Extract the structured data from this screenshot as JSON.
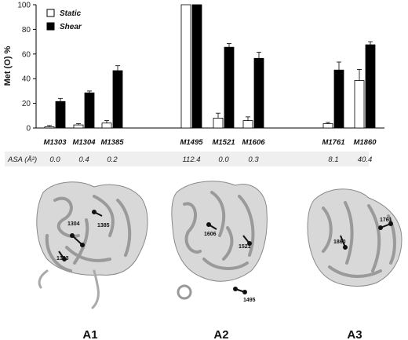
{
  "chart_data": {
    "type": "bar",
    "ylabel": "Met (O) %",
    "ylim": [
      0,
      100
    ],
    "yticks": [
      "0",
      "20",
      "40",
      "60",
      "80",
      "100"
    ],
    "categories": [
      "M1303",
      "M1304",
      "M1385",
      "M1495",
      "M1521",
      "M1606",
      "M1761",
      "M1860"
    ],
    "series": [
      {
        "name": "Static",
        "color": "#ffffff",
        "values": [
          1,
          2.5,
          4,
          100,
          8,
          6,
          3.5,
          38.5
        ],
        "errors": [
          1,
          1,
          2,
          0,
          4,
          3,
          1,
          9
        ]
      },
      {
        "name": "Shear",
        "color": "#000000",
        "values": [
          21.5,
          28.5,
          46.5,
          100,
          65.5,
          56.5,
          47,
          67.5
        ],
        "errors": [
          2.5,
          1.5,
          4,
          0,
          3,
          5,
          6.5,
          2.5
        ]
      }
    ],
    "legend_position": "top-left",
    "asa": {
      "label": "ASA (Å²)",
      "values": [
        "0.0",
        "0.4",
        "0.2",
        "112.4",
        "0.0",
        "0.3",
        "8.1",
        "40.4"
      ]
    },
    "panels": [
      {
        "label": "A1",
        "residues": [
          "1304",
          "1385",
          "1303"
        ]
      },
      {
        "label": "A2",
        "residues": [
          "1606",
          "1521",
          "1495"
        ]
      },
      {
        "label": "A3",
        "residues": [
          "1761",
          "1860"
        ]
      }
    ]
  }
}
